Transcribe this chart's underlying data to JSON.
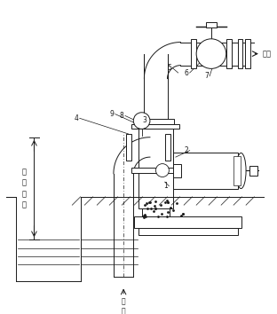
{
  "bg_color": "#ffffff",
  "line_color": "#1a1a1a",
  "fig_width": 3.12,
  "fig_height": 3.54,
  "dpi": 100,
  "outlet_label": "出口",
  "inlet_label": "吸\n口",
  "height_label": "安\n装\n高\n度",
  "item_labels": [
    "1",
    "2",
    "3",
    "4",
    "5",
    "6",
    "7",
    "8",
    "9"
  ]
}
